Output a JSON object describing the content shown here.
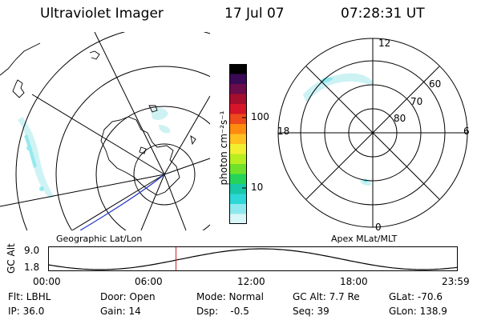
{
  "header": {
    "title": "Ultraviolet Imager",
    "date": "17 Jul 07",
    "time": "07:28:31 UT"
  },
  "left_map": {
    "caption": "Geographic Lat/Lon"
  },
  "right_map": {
    "caption": "Apex MLat/MLT",
    "mlt_labels": {
      "top": "12",
      "right": "6",
      "bottom": "0",
      "left": "18"
    },
    "lat_labels": [
      "60",
      "70",
      "80"
    ]
  },
  "colorbar": {
    "unit": "photon cm⁻²s⁻¹",
    "ticks": [
      "100",
      "10"
    ],
    "colors": [
      "#000000",
      "#3a0a55",
      "#6a0d4a",
      "#a50f2c",
      "#d6152a",
      "#ee4a1c",
      "#ff8a10",
      "#ffc020",
      "#f2ee30",
      "#b8ee20",
      "#6fe12a",
      "#26d35a",
      "#18c8a8",
      "#2ed8d8",
      "#8ee9ee",
      "#d9f6f8"
    ]
  },
  "altitude_plot": {
    "axis_label": "GC Alt",
    "ymax_label": "9.0",
    "ymin_label": "1.8",
    "time_labels": [
      "00:00",
      "06:00",
      "12:00",
      "18:00",
      "23:59"
    ],
    "current_time_hours": 7.475
  },
  "status": {
    "row1": [
      "Flt: LBHL",
      "Door: Open",
      "Mode: Normal",
      "GC Alt: 7.7 Re",
      "GLat: -70.6"
    ],
    "row2": [
      "IP: 36.0",
      "Gain: 14",
      "Dsp:    -0.5",
      "Seq: 39",
      "GLon: 138.9"
    ]
  },
  "colors": {
    "aurora": "#8ee9ee",
    "aurora_dark": "#2ed8d8",
    "orbit_track": "#2233cc",
    "time_marker": "#cc2222"
  }
}
